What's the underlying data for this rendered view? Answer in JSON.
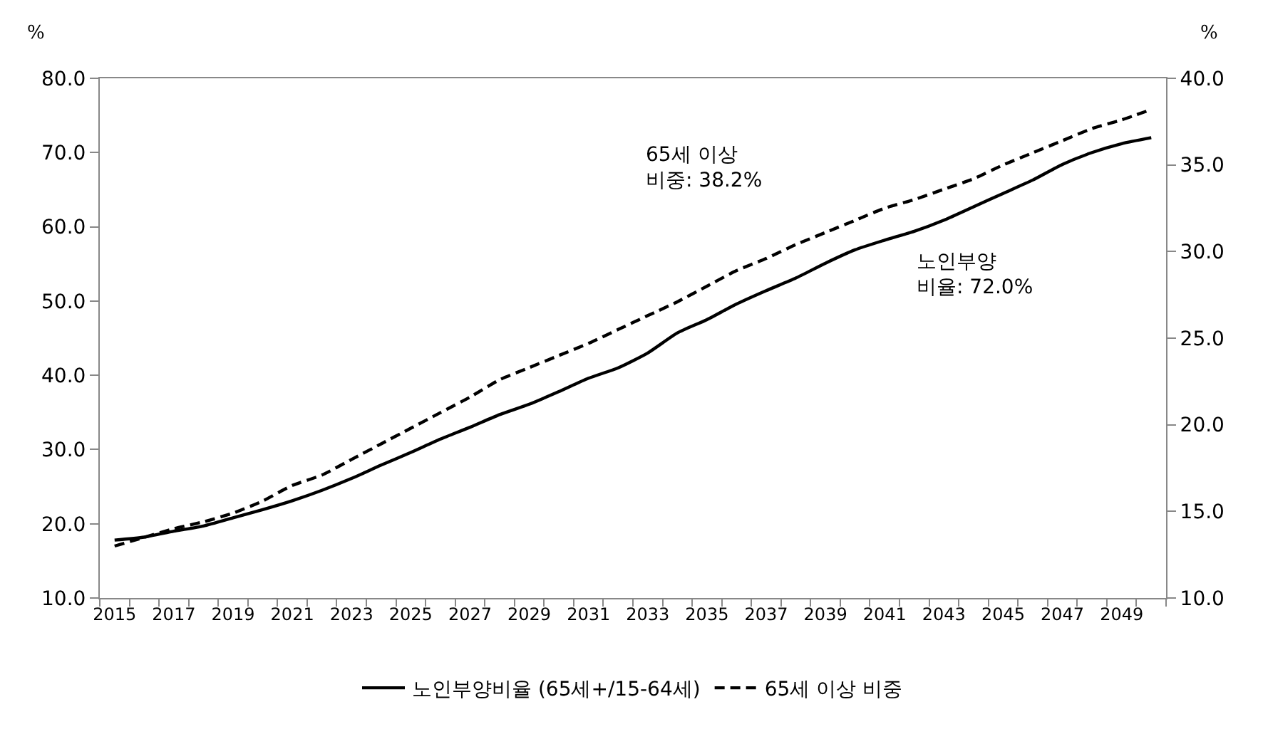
{
  "chart_data": {
    "type": "line",
    "categories": [
      "2015",
      null,
      "2017",
      null,
      "2019",
      null,
      "2021",
      null,
      "2023",
      null,
      "2025",
      null,
      "2027",
      null,
      "2029",
      null,
      "2031",
      null,
      "2033",
      null,
      "2035",
      null,
      "2037",
      null,
      "2039",
      null,
      "2041",
      null,
      "2043",
      null,
      "2045",
      null,
      "2047",
      null,
      "2049",
      null
    ],
    "ylabel": "%",
    "y2label": "%",
    "series": [
      {
        "name": "노인부양비율 (65세+/15-64세)",
        "color": "#000000",
        "line_style": "solid",
        "values": [
          17.8,
          18.2,
          19.0,
          19.7,
          20.8,
          21.9,
          23.1,
          24.5,
          26.1,
          27.9,
          29.6,
          31.4,
          33.0,
          34.7,
          36.1,
          37.8,
          39.6,
          41.0,
          43.0,
          45.7,
          47.5,
          49.6,
          51.4,
          53.1,
          55.1,
          56.9,
          58.2,
          59.4,
          60.9,
          62.7,
          64.5,
          66.3,
          68.4,
          70.0,
          71.2,
          72.0
        ]
      },
      {
        "name": "65세 이상 비중",
        "color": "#000000",
        "line_style": "dashed",
        "axis": "y2",
        "values": [
          13.0,
          13.5,
          14.0,
          14.4,
          14.9,
          15.6,
          16.5,
          17.1,
          18.0,
          18.9,
          19.8,
          20.7,
          21.6,
          22.6,
          23.3,
          24.0,
          24.7,
          25.5,
          26.3,
          27.1,
          28.0,
          28.9,
          29.6,
          30.4,
          31.1,
          31.8,
          32.5,
          33.0,
          33.6,
          34.2,
          35.0,
          35.7,
          36.4,
          37.1,
          37.6,
          38.2
        ]
      }
    ],
    "ylim": [
      10,
      80
    ],
    "yticks": [
      {
        "value": 10,
        "label": "10.0"
      },
      {
        "value": 20,
        "label": "20.0"
      },
      {
        "value": 30,
        "label": "30.0"
      },
      {
        "value": 40,
        "label": "40.0"
      },
      {
        "value": 50,
        "label": "50.0"
      },
      {
        "value": 60,
        "label": "60.0"
      },
      {
        "value": 70,
        "label": "70.0"
      },
      {
        "value": 80,
        "label": "80.0"
      }
    ],
    "y2lim": [
      10,
      40
    ],
    "y2ticks": [
      {
        "value": 10,
        "label": "10.0"
      },
      {
        "value": 15,
        "label": "15.0"
      },
      {
        "value": 20,
        "label": "20.0"
      },
      {
        "value": 25,
        "label": "25.0"
      },
      {
        "value": 30,
        "label": "30.0"
      },
      {
        "value": 35,
        "label": "35.0"
      },
      {
        "value": 40,
        "label": "40.0"
      }
    ],
    "annotations": [
      "65세 이상\n비중: 38.2%",
      "노인부양\n비율: 72.0%"
    ],
    "legend": "bottom",
    "grid": false,
    "marker": "none"
  }
}
